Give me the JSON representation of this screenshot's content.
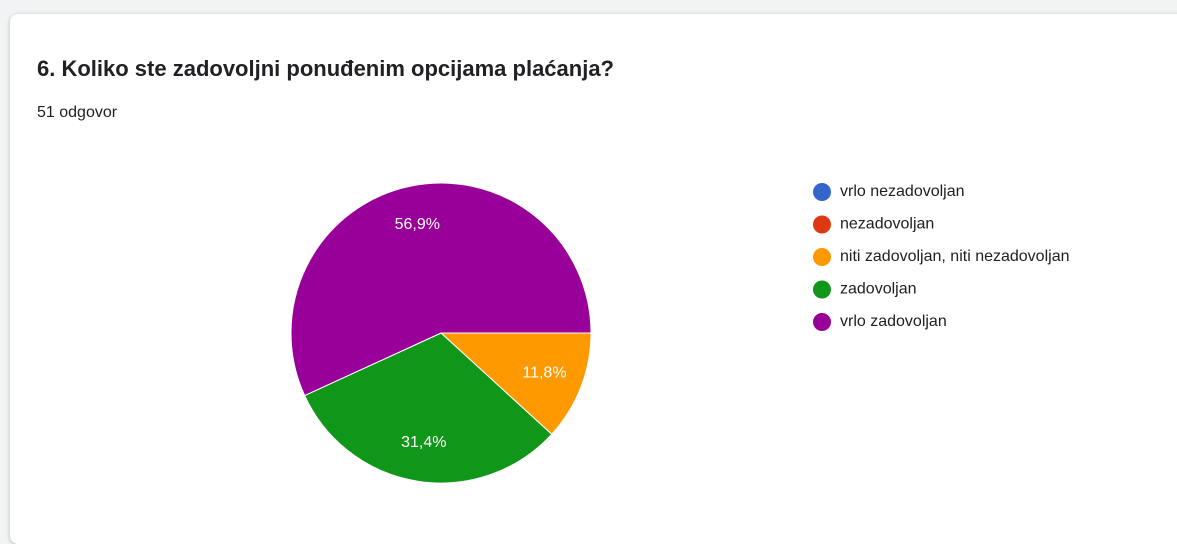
{
  "chart_data": {
    "type": "pie",
    "title": "6. Koliko ste zadovoljni ponuđenim opcijama plaćanja?",
    "subtitle": "51 odgovor",
    "categories": [
      "vrlo nezadovoljan",
      "nezadovoljan",
      "niti zadovoljan, niti nezadovoljan",
      "zadovoljan",
      "vrlo zadovoljan"
    ],
    "values": [
      0,
      0,
      11.8,
      31.4,
      56.9
    ],
    "value_labels": [
      null,
      null,
      "11,8%",
      "31,4%",
      "56,9%"
    ],
    "colors": [
      "#3366cc",
      "#dc3912",
      "#ff9900",
      "#109618",
      "#990099"
    ]
  }
}
